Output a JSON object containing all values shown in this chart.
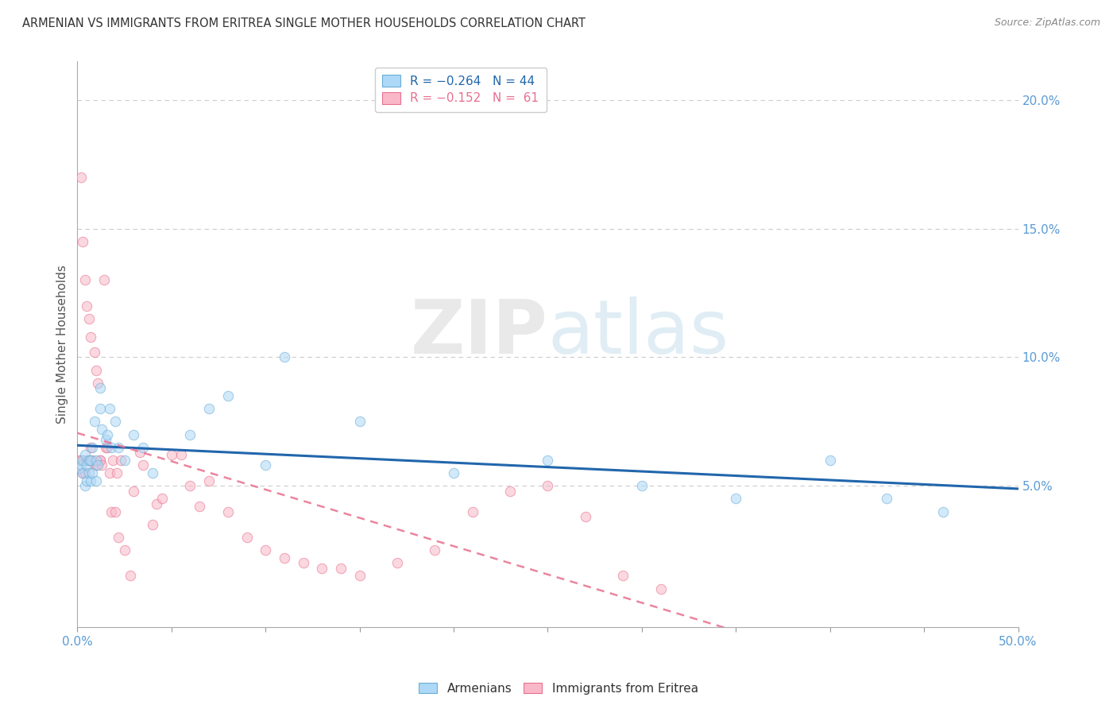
{
  "title": "ARMENIAN VS IMMIGRANTS FROM ERITREA SINGLE MOTHER HOUSEHOLDS CORRELATION CHART",
  "source": "Source: ZipAtlas.com",
  "ylabel": "Single Mother Households",
  "xlim": [
    0.0,
    0.5
  ],
  "ylim": [
    -0.005,
    0.215
  ],
  "legend_armenian": "R = −0.264   N = 44",
  "legend_eritrea": "R = −0.152   N =  61",
  "armenian_fill": "#add8f7",
  "eritrea_fill": "#f9b8c8",
  "armenian_edge": "#6aaed6",
  "eritrea_edge": "#e87090",
  "armenian_line_color": "#2166ac",
  "eritrea_line_color": "#e87090",
  "grid_color": "#cccccc",
  "background_color": "#ffffff",
  "title_color": "#333333",
  "ylabel_color": "#555555",
  "tick_color": "#5b9bd5",
  "marker_size": 80,
  "marker_alpha": 0.55,
  "watermark_zip": "ZIP",
  "watermark_atlas": "atlas",
  "armenian_x": [
    0.001,
    0.002,
    0.003,
    0.003,
    0.004,
    0.004,
    0.005,
    0.005,
    0.006,
    0.006,
    0.007,
    0.007,
    0.008,
    0.008,
    0.009,
    0.01,
    0.01,
    0.011,
    0.012,
    0.012,
    0.013,
    0.015,
    0.016,
    0.017,
    0.018,
    0.02,
    0.022,
    0.025,
    0.03,
    0.035,
    0.04,
    0.06,
    0.07,
    0.08,
    0.1,
    0.11,
    0.15,
    0.2,
    0.25,
    0.3,
    0.35,
    0.4,
    0.43,
    0.46
  ],
  "armenian_y": [
    0.057,
    0.058,
    0.06,
    0.055,
    0.062,
    0.05,
    0.058,
    0.052,
    0.06,
    0.055,
    0.06,
    0.052,
    0.065,
    0.055,
    0.075,
    0.06,
    0.052,
    0.058,
    0.08,
    0.088,
    0.072,
    0.068,
    0.07,
    0.08,
    0.065,
    0.075,
    0.065,
    0.06,
    0.07,
    0.065,
    0.055,
    0.07,
    0.08,
    0.085,
    0.058,
    0.1,
    0.075,
    0.055,
    0.06,
    0.05,
    0.045,
    0.06,
    0.045,
    0.04
  ],
  "eritrea_x": [
    0.001,
    0.002,
    0.002,
    0.003,
    0.003,
    0.004,
    0.004,
    0.005,
    0.005,
    0.006,
    0.006,
    0.007,
    0.007,
    0.008,
    0.009,
    0.009,
    0.01,
    0.01,
    0.011,
    0.012,
    0.012,
    0.013,
    0.014,
    0.015,
    0.016,
    0.017,
    0.018,
    0.019,
    0.02,
    0.021,
    0.022,
    0.023,
    0.025,
    0.028,
    0.03,
    0.033,
    0.035,
    0.04,
    0.042,
    0.045,
    0.05,
    0.055,
    0.06,
    0.065,
    0.07,
    0.08,
    0.09,
    0.1,
    0.11,
    0.12,
    0.13,
    0.14,
    0.15,
    0.17,
    0.19,
    0.21,
    0.23,
    0.25,
    0.27,
    0.29,
    0.31
  ],
  "eritrea_y": [
    0.06,
    0.06,
    0.17,
    0.055,
    0.145,
    0.055,
    0.13,
    0.06,
    0.12,
    0.06,
    0.115,
    0.065,
    0.108,
    0.06,
    0.102,
    0.058,
    0.095,
    0.058,
    0.09,
    0.06,
    0.06,
    0.058,
    0.13,
    0.065,
    0.065,
    0.055,
    0.04,
    0.06,
    0.04,
    0.055,
    0.03,
    0.06,
    0.025,
    0.015,
    0.048,
    0.063,
    0.058,
    0.035,
    0.043,
    0.045,
    0.062,
    0.062,
    0.05,
    0.042,
    0.052,
    0.04,
    0.03,
    0.025,
    0.022,
    0.02,
    0.018,
    0.018,
    0.015,
    0.02,
    0.025,
    0.04,
    0.048,
    0.05,
    0.038,
    0.015,
    0.01
  ]
}
